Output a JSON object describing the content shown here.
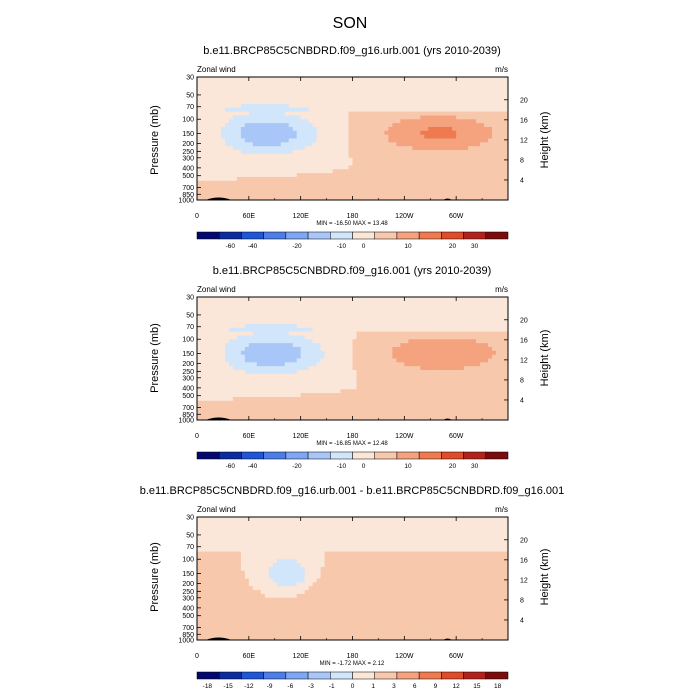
{
  "figure": {
    "title": "SON"
  },
  "colors": {
    "level_colors_main": [
      "#04086e",
      "#0a2c9e",
      "#1e56d6",
      "#4c7ee8",
      "#7ea6f2",
      "#a8c6f8",
      "#d2e6fb",
      "#fbe7d9",
      "#f8c8ac",
      "#f5a37e",
      "#ef7a50",
      "#df4c2b",
      "#b3221a",
      "#7a0c0c"
    ],
    "level_colors_diff": [
      "#04086e",
      "#0a2c9e",
      "#1e56d6",
      "#4c7ee8",
      "#7ea6f2",
      "#a8c6f8",
      "#d2e6fb",
      "#fbe7d9",
      "#f8c8ac",
      "#f5a37e",
      "#ef7a50",
      "#df4c2b",
      "#b3221a",
      "#7a0c0c"
    ],
    "terrain": "#000000"
  },
  "chart_data": [
    {
      "type": "heatmap",
      "title": "b.e11.BRCP85C5CNBDRD.f09_g16.urb.001 (yrs 2010-2039)",
      "left_label": "Zonal wind",
      "right_label": "m/s",
      "ylabel": "Pressure (mb)",
      "ylabel_right": "Height (km)",
      "x_ticks": [
        "0",
        "60E",
        "120E",
        "180",
        "120W",
        "60W"
      ],
      "y_ticks": [
        "30",
        "50",
        "70",
        "100",
        "150",
        "200",
        "250",
        "300",
        "400",
        "500",
        "700",
        "850",
        "1000"
      ],
      "y_right_ticks": [
        "20",
        "16",
        "12",
        "8",
        "4"
      ],
      "stats": "MIN = -16.50  MAX =  13.48",
      "colorbar_labels": [
        "-60",
        "-40",
        "-20",
        "-10",
        "0",
        "10",
        "20",
        "30"
      ],
      "field": {
        "background": 0,
        "blobs": [
          {
            "lon": 80,
            "lat_p": 150,
            "value": -14,
            "rx": 60,
            "ry": 0.6
          },
          {
            "lon": 280,
            "lat_p": 150,
            "value": 11,
            "rx": 70,
            "ry": 0.55
          },
          {
            "lon": 20,
            "lat_p": 150,
            "value": 2,
            "rx": 30,
            "ry": 0.4
          },
          {
            "lon": 150,
            "lat_p": 700,
            "value": 1,
            "rx": 80,
            "ry": 0.3
          }
        ]
      }
    },
    {
      "type": "heatmap",
      "title": "b.e11.BRCP85C5CNBDRD.f09_g16.001 (yrs 2010-2039)",
      "left_label": "Zonal wind",
      "right_label": "m/s",
      "ylabel": "Pressure (mb)",
      "ylabel_right": "Height (km)",
      "x_ticks": [
        "0",
        "60E",
        "120E",
        "180",
        "120W",
        "60W"
      ],
      "y_ticks": [
        "30",
        "50",
        "70",
        "100",
        "150",
        "200",
        "250",
        "300",
        "400",
        "500",
        "700",
        "850",
        "1000"
      ],
      "y_right_ticks": [
        "20",
        "16",
        "12",
        "8",
        "4"
      ],
      "stats": "MIN = -16.85  MAX =  12.48",
      "colorbar_labels": [
        "-60",
        "-40",
        "-20",
        "-10",
        "0",
        "10",
        "20",
        "30"
      ],
      "field": {
        "background": 0,
        "blobs": [
          {
            "lon": 85,
            "lat_p": 150,
            "value": -14,
            "rx": 62,
            "ry": 0.6
          },
          {
            "lon": 285,
            "lat_p": 150,
            "value": 10,
            "rx": 72,
            "ry": 0.55
          },
          {
            "lon": 20,
            "lat_p": 150,
            "value": 2,
            "rx": 30,
            "ry": 0.4
          },
          {
            "lon": 150,
            "lat_p": 700,
            "value": 1,
            "rx": 80,
            "ry": 0.3
          }
        ]
      }
    },
    {
      "type": "heatmap",
      "title": "b.e11.BRCP85C5CNBDRD.f09_g16.urb.001 - b.e11.BRCP85C5CNBDRD.f09_g16.001",
      "left_label": "Zonal wind",
      "right_label": "m/s",
      "ylabel": "Pressure (mb)",
      "ylabel_right": "Height (km)",
      "x_ticks": [
        "0",
        "60E",
        "120E",
        "180",
        "120W",
        "60W"
      ],
      "y_ticks": [
        "30",
        "50",
        "70",
        "100",
        "150",
        "200",
        "250",
        "300",
        "400",
        "500",
        "700",
        "850",
        "1000"
      ],
      "y_right_ticks": [
        "20",
        "16",
        "12",
        "8",
        "4"
      ],
      "stats": "MIN = -1.72  MAX =  2.12",
      "colorbar_labels": [
        "-18",
        "-15",
        "-12",
        "-9",
        "-6",
        "-3",
        "-1",
        "0",
        "1",
        "3",
        "6",
        "9",
        "12",
        "15",
        "18"
      ],
      "field": {
        "background": 0,
        "blobs": [
          {
            "lon": 105,
            "lat_p": 150,
            "value": -3,
            "rx": 20,
            "ry": 0.4
          },
          {
            "lon": 200,
            "lat_p": 300,
            "value": 0.5,
            "rx": 80,
            "ry": 0.6
          },
          {
            "lon": 300,
            "lat_p": 300,
            "value": 0.5,
            "rx": 60,
            "ry": 0.6
          }
        ]
      }
    }
  ]
}
